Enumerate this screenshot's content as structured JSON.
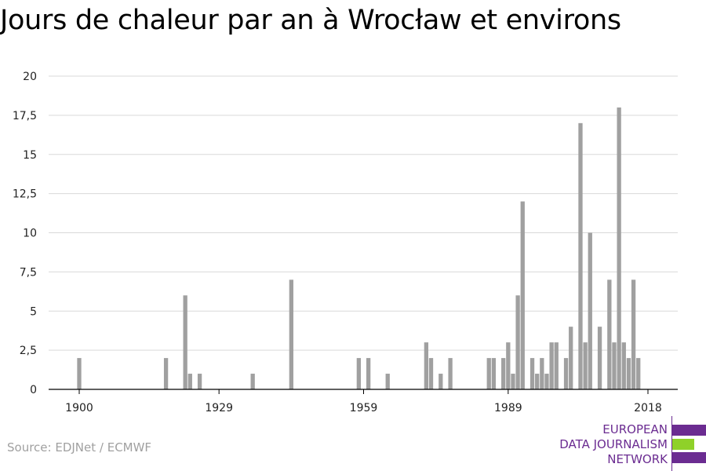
{
  "title": "Jours de chaleur par an à Wrocław et environs",
  "source": "Source: EDJNet / ECMWF",
  "logo": {
    "line1": "EUROPEAN",
    "line2": "DATA JOURNALISM",
    "line3": "NETWORK"
  },
  "colors": {
    "bar": "#a0a0a0",
    "grid": "#d9d9d9",
    "axis": "#000000",
    "logo_purple": "#6b2c91",
    "logo_green": "#8fd129"
  },
  "chart_data": {
    "type": "bar",
    "title": "Jours de chaleur par an à Wrocław et environs",
    "xlabel": "",
    "ylabel": "",
    "x_ticks": [
      1900,
      1929,
      1959,
      1989,
      2018
    ],
    "y_ticks": [
      "0",
      "2,5",
      "5",
      "7,5",
      "10",
      "12,5",
      "15",
      "17,5",
      "20"
    ],
    "ylim": [
      0,
      20
    ],
    "xlim": [
      1900,
      2018
    ],
    "grid": true,
    "x": [
      1900,
      1918,
      1922,
      1923,
      1925,
      1936,
      1944,
      1958,
      1960,
      1964,
      1972,
      1973,
      1975,
      1977,
      1985,
      1986,
      1988,
      1989,
      1990,
      1991,
      1992,
      1994,
      1995,
      1996,
      1997,
      1998,
      1999,
      2001,
      2002,
      2004,
      2005,
      2006,
      2008,
      2010,
      2011,
      2012,
      2013,
      2014,
      2015,
      2016,
      2017,
      2018
    ],
    "values": [
      2,
      2,
      6,
      1,
      1,
      1,
      7,
      2,
      2,
      1,
      3,
      2,
      1,
      2,
      2,
      2,
      2,
      3,
      1,
      6,
      12,
      2,
      1,
      2,
      1,
      3,
      3,
      2,
      4,
      17,
      3,
      10,
      4,
      7,
      3,
      18,
      3,
      2,
      7,
      2,
      0,
      0
    ]
  }
}
